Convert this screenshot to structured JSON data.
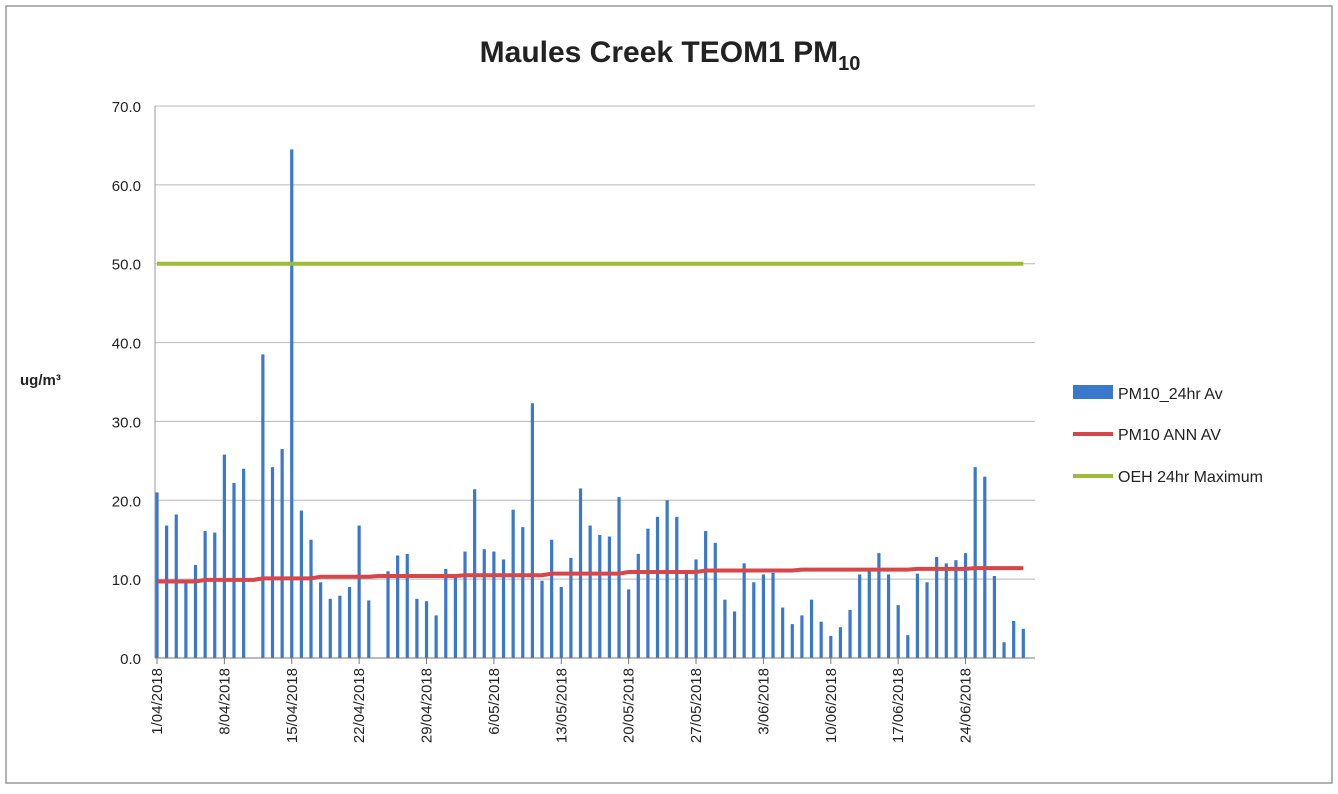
{
  "chart_data": {
    "type": "bar",
    "title": "Maules Creek TEOM1 PM",
    "title_subscript": "10",
    "y_label": "ug/m³",
    "categories": [
      "1/04/2018",
      null,
      null,
      null,
      null,
      null,
      null,
      "8/04/2018",
      null,
      null,
      null,
      null,
      null,
      null,
      "15/04/2018",
      null,
      null,
      null,
      null,
      null,
      null,
      "22/04/2018",
      null,
      null,
      null,
      null,
      null,
      null,
      "29/04/2018",
      null,
      null,
      null,
      null,
      null,
      null,
      "6/05/2018",
      null,
      null,
      null,
      null,
      null,
      null,
      "13/05/2018",
      null,
      null,
      null,
      null,
      null,
      null,
      "20/05/2018",
      null,
      null,
      null,
      null,
      null,
      null,
      "27/05/2018",
      null,
      null,
      null,
      null,
      null,
      null,
      "3/06/2018",
      null,
      null,
      null,
      null,
      null,
      null,
      "10/06/2018",
      null,
      null,
      null,
      null,
      null,
      null,
      "17/06/2018",
      null,
      null,
      null,
      null,
      null,
      null,
      "24/06/2018",
      null,
      null,
      null,
      null,
      null,
      null
    ],
    "series": [
      {
        "name": "PM10_24hr Av",
        "type": "bar",
        "color": "#3a78cc",
        "values": [
          21.0,
          16.8,
          18.2,
          9.8,
          11.8,
          16.1,
          15.9,
          25.8,
          22.2,
          24.0,
          null,
          38.5,
          24.2,
          26.5,
          64.5,
          18.7,
          15.0,
          9.6,
          7.5,
          7.9,
          9.0,
          16.8,
          7.3,
          null,
          11.0,
          13.0,
          13.2,
          7.5,
          7.2,
          5.4,
          11.3,
          10.5,
          13.5,
          21.4,
          13.8,
          13.5,
          12.5,
          18.8,
          16.6,
          32.3,
          9.8,
          15.0,
          9.0,
          12.7,
          21.5,
          16.8,
          15.6,
          15.4,
          20.4,
          8.7,
          13.2,
          16.4,
          17.9,
          20.0,
          17.9,
          10.9,
          12.5,
          16.1,
          14.6,
          7.4,
          5.9,
          12.0,
          9.6,
          10.6,
          10.8,
          6.4,
          4.3,
          5.4,
          7.4,
          4.6,
          2.8,
          3.9,
          6.1,
          10.6,
          11.0,
          13.3,
          10.6,
          6.7,
          2.9,
          10.7,
          9.6,
          12.8,
          12.0,
          12.4,
          13.3,
          24.2,
          23.0,
          10.4,
          2.0,
          4.7,
          3.7
        ]
      },
      {
        "name": "PM10 ANN AV",
        "type": "line",
        "color": "#d9464a",
        "values": [
          9.7,
          9.7,
          9.7,
          9.7,
          9.7,
          9.9,
          9.9,
          9.9,
          9.9,
          9.9,
          9.9,
          10.1,
          10.1,
          10.1,
          10.1,
          10.1,
          10.1,
          10.3,
          10.3,
          10.3,
          10.3,
          10.3,
          10.3,
          10.4,
          10.4,
          10.4,
          10.4,
          10.4,
          10.4,
          10.4,
          10.4,
          10.4,
          10.5,
          10.5,
          10.5,
          10.5,
          10.5,
          10.5,
          10.5,
          10.5,
          10.5,
          10.7,
          10.7,
          10.7,
          10.7,
          10.7,
          10.7,
          10.7,
          10.7,
          10.9,
          10.9,
          10.9,
          10.9,
          10.9,
          10.9,
          10.9,
          10.9,
          11.1,
          11.1,
          11.1,
          11.1,
          11.1,
          11.1,
          11.1,
          11.1,
          11.1,
          11.1,
          11.2,
          11.2,
          11.2,
          11.2,
          11.2,
          11.2,
          11.2,
          11.2,
          11.2,
          11.2,
          11.2,
          11.2,
          11.3,
          11.3,
          11.3,
          11.3,
          11.3,
          11.3,
          11.4,
          11.4,
          11.4,
          11.4,
          11.4,
          11.4
        ]
      },
      {
        "name": "OEH 24hr Maximum",
        "type": "line",
        "color": "#9cbb3b",
        "values": [
          50,
          50,
          50,
          50,
          50,
          50,
          50,
          50,
          50,
          50,
          50,
          50,
          50,
          50,
          50,
          50,
          50,
          50,
          50,
          50,
          50,
          50,
          50,
          50,
          50,
          50,
          50,
          50,
          50,
          50,
          50,
          50,
          50,
          50,
          50,
          50,
          50,
          50,
          50,
          50,
          50,
          50,
          50,
          50,
          50,
          50,
          50,
          50,
          50,
          50,
          50,
          50,
          50,
          50,
          50,
          50,
          50,
          50,
          50,
          50,
          50,
          50,
          50,
          50,
          50,
          50,
          50,
          50,
          50,
          50,
          50,
          50,
          50,
          50,
          50,
          50,
          50,
          50,
          50,
          50,
          50,
          50,
          50,
          50,
          50,
          50,
          50,
          50,
          50,
          50,
          50
        ]
      }
    ],
    "ylim": [
      0,
      70
    ],
    "yticks": [
      {
        "value": 0,
        "label": "0.0"
      },
      {
        "value": 10,
        "label": "10.0"
      },
      {
        "value": 20,
        "label": "20.0"
      },
      {
        "value": 30,
        "label": "30.0"
      },
      {
        "value": 40,
        "label": "40.0"
      },
      {
        "value": 50,
        "label": "50.0"
      },
      {
        "value": 60,
        "label": "60.0"
      },
      {
        "value": 70,
        "label": "70.0"
      }
    ],
    "grid": true,
    "legend": "right"
  }
}
